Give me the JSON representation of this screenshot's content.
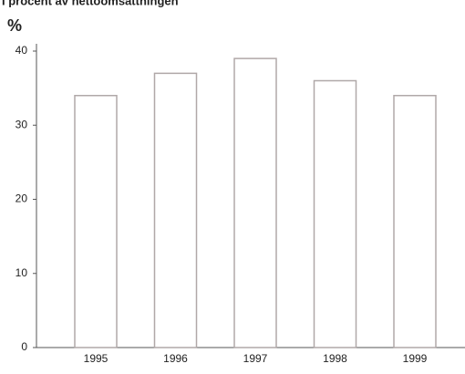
{
  "chart_data": {
    "type": "bar",
    "title": "I procent av nettoomsättningen",
    "y_label": "%",
    "categories": [
      "1995",
      "1996",
      "1997",
      "1998",
      "1999"
    ],
    "values": [
      34,
      37,
      39,
      36,
      34
    ],
    "color": "#ffffff",
    "edge_color": "#b0a8a8",
    "ylim": [
      0,
      40
    ],
    "yticks": [
      0,
      10,
      20,
      30,
      40
    ],
    "grid": false
  }
}
